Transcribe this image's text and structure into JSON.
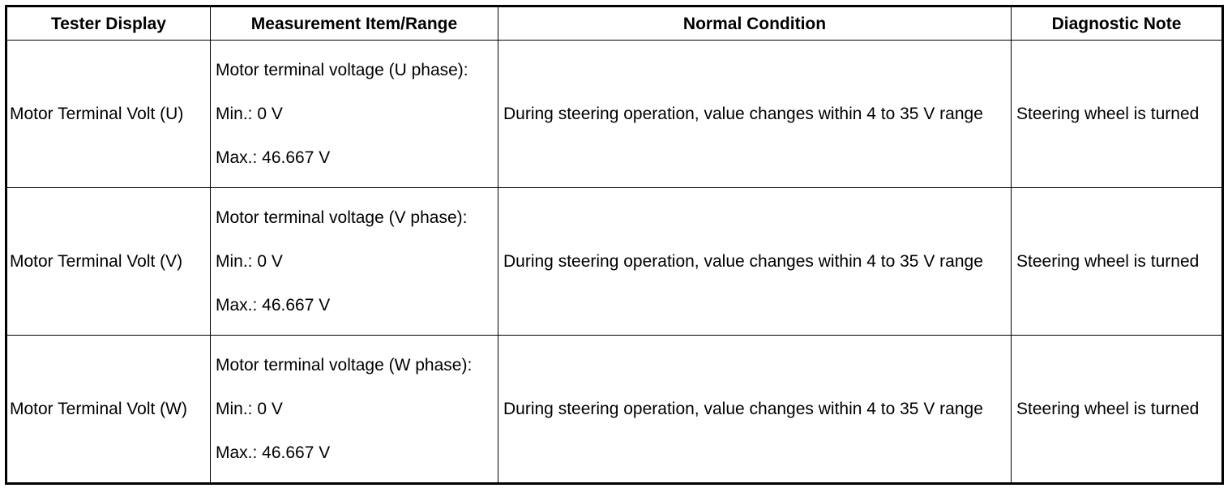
{
  "table": {
    "headers": [
      "Tester Display",
      "Measurement Item/Range",
      "Normal Condition",
      "Diagnostic Note"
    ],
    "rows": [
      {
        "tester_display": "Motor Terminal Volt (U)",
        "measurement_item": "Motor terminal voltage (U phase):",
        "min": "Min.: 0 V",
        "max": "Max.: 46.667 V",
        "normal_condition": "During steering operation, value changes within 4 to 35 V range",
        "diagnostic_note": "Steering wheel is turned"
      },
      {
        "tester_display": "Motor Terminal Volt (V)",
        "measurement_item": "Motor terminal voltage (V phase):",
        "min": "Min.: 0 V",
        "max": "Max.: 46.667 V",
        "normal_condition": "During steering operation, value changes within 4 to 35 V range",
        "diagnostic_note": "Steering wheel is turned"
      },
      {
        "tester_display": "Motor Terminal Volt (W)",
        "measurement_item": "Motor terminal voltage (W phase):",
        "min": "Min.: 0 V",
        "max": "Max.: 46.667 V",
        "normal_condition": "During steering operation, value changes within 4 to 35 V range",
        "diagnostic_note": "Steering wheel is turned"
      }
    ]
  }
}
